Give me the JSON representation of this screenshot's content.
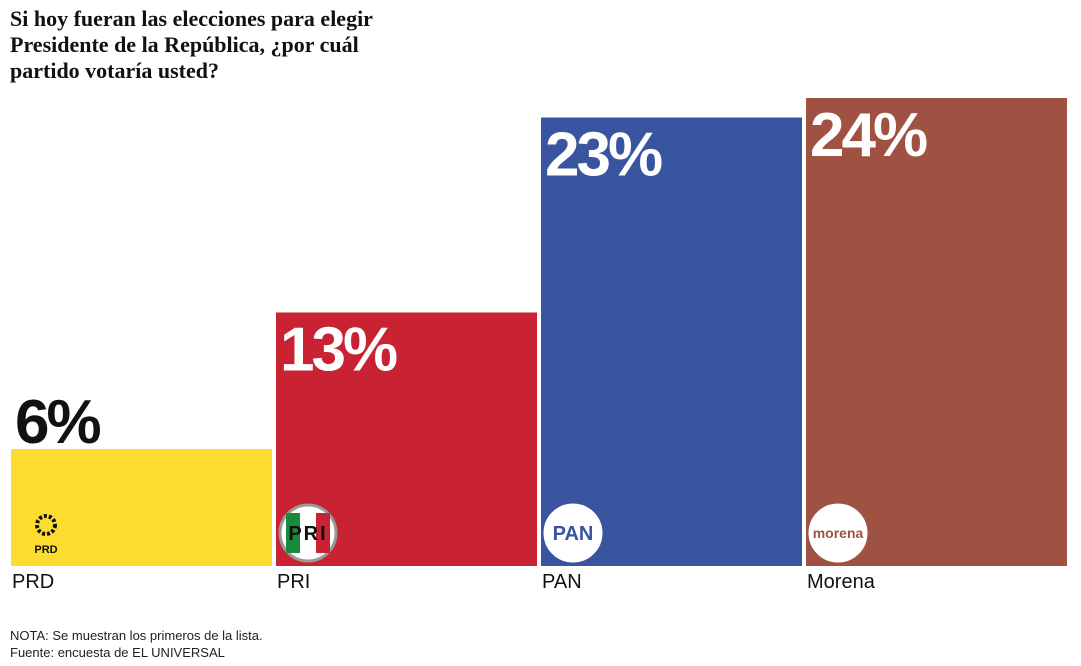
{
  "chart_data": {
    "type": "bar",
    "title": "Si hoy fueran las elecciones para elegir Presidente de la República, ¿por cuál partido votaría usted?",
    "categories": [
      "PRD",
      "PRI",
      "PAN",
      "Morena"
    ],
    "values": [
      6,
      13,
      23,
      24
    ],
    "value_labels": [
      "6%",
      "13%",
      "23%",
      "24%"
    ],
    "colors": [
      "#fddc2f",
      "#c92233",
      "#3a559f",
      "#a05242"
    ],
    "logos": [
      "PRD",
      "PRI",
      "PAN",
      "morena"
    ],
    "notes": [
      "NOTA: Se muestran los primeros de la lista.",
      "Fuente: encuesta de EL UNIVERSAL"
    ]
  }
}
